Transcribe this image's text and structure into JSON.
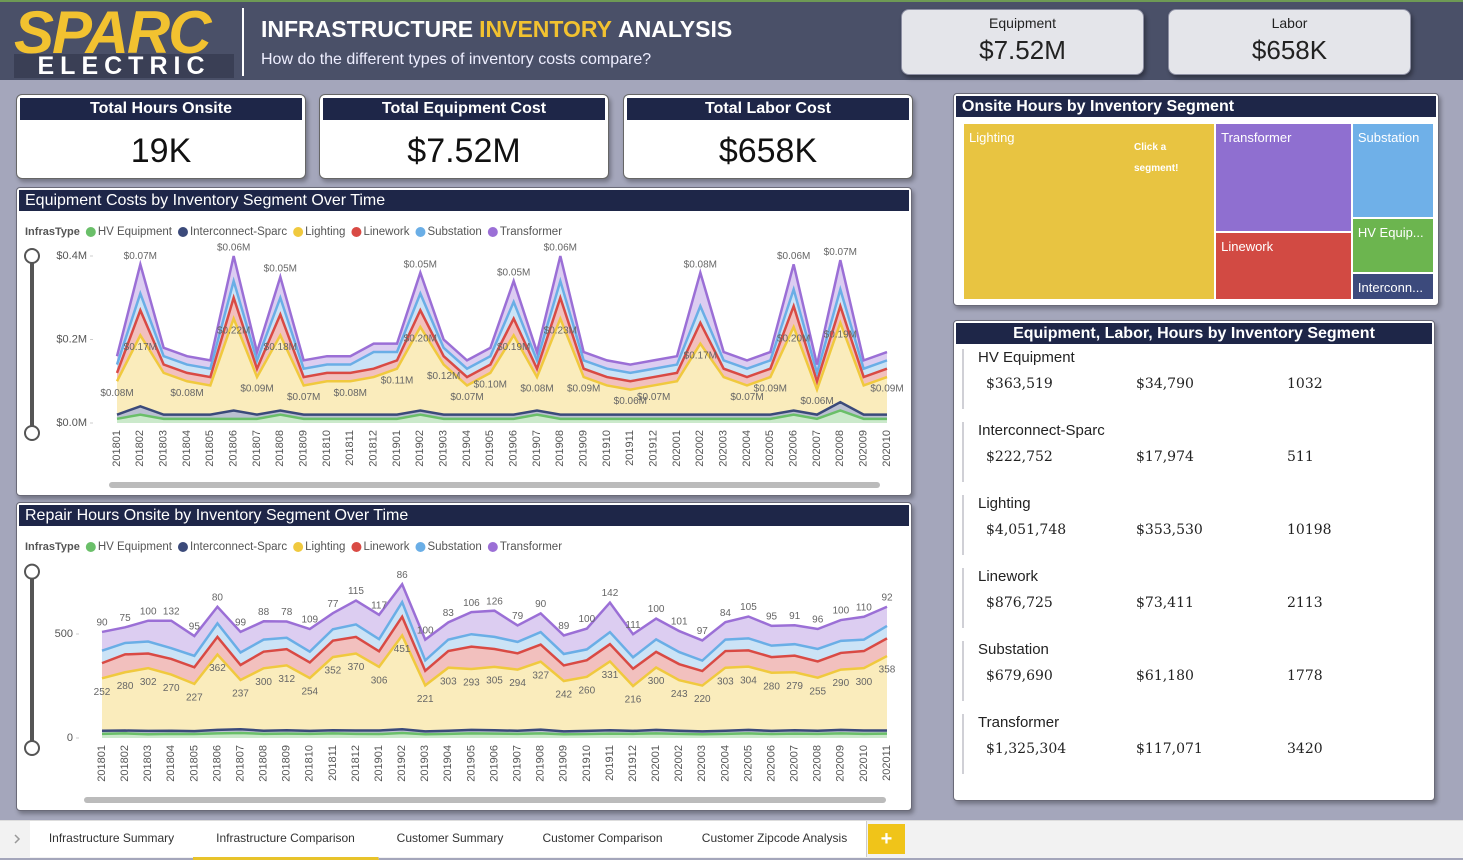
{
  "header": {
    "logo": {
      "top": "SPARC",
      "bottom": "ELECTRIC"
    },
    "title": [
      "INFRASTRUCTURE",
      "INVENTORY",
      "ANALYSIS"
    ],
    "subtitle": "How do the different types of inventory costs compare?"
  },
  "top_cards": [
    {
      "label": "Equipment",
      "value": "$7.52M"
    },
    {
      "label": "Labor",
      "value": "$658K"
    }
  ],
  "kpi_cards": [
    {
      "title": "Total Hours Onsite",
      "value": "19K"
    },
    {
      "title": "Total Equipment Cost",
      "value": "$7.52M"
    },
    {
      "title": "Total Labor Cost",
      "value": "$658K"
    }
  ],
  "chart_data": [
    {
      "type": "area",
      "stacked": true,
      "title": "Equipment Costs by Inventory Segment Over Time",
      "legend_title": "InfrasType",
      "categories": [
        "201801",
        "201802",
        "201803",
        "201804",
        "201805",
        "201806",
        "201807",
        "201808",
        "201809",
        "201810",
        "201811",
        "201812",
        "201901",
        "201902",
        "201903",
        "201904",
        "201905",
        "201906",
        "201907",
        "201908",
        "201909",
        "201910",
        "201911",
        "201912",
        "202001",
        "202002",
        "202003",
        "202004",
        "202005",
        "202006",
        "202007",
        "202008",
        "202009",
        "202010"
      ],
      "series": [
        {
          "name": "HV Equipment",
          "color": "#6abf69",
          "values": [
            0.01,
            0.02,
            0.01,
            0.01,
            0.01,
            0.01,
            0.01,
            0.02,
            0.01,
            0.01,
            0.01,
            0.01,
            0.01,
            0.02,
            0.01,
            0.01,
            0.01,
            0.01,
            0.02,
            0.01,
            0.01,
            0.01,
            0.01,
            0.01,
            0.01,
            0.01,
            0.01,
            0.01,
            0.01,
            0.02,
            0.01,
            0.03,
            0.01,
            0.01
          ]
        },
        {
          "name": "Interconnect-Sparc",
          "color": "#3b4a7a",
          "values": [
            0.01,
            0.02,
            0.01,
            0.01,
            0.01,
            0.02,
            0.01,
            0.01,
            0.01,
            0.01,
            0.01,
            0.01,
            0.01,
            0.01,
            0.01,
            0.01,
            0.01,
            0.01,
            0.01,
            0.01,
            0.01,
            0.01,
            0.01,
            0.01,
            0.01,
            0.01,
            0.01,
            0.01,
            0.01,
            0.01,
            0.01,
            0.02,
            0.01,
            0.01
          ]
        },
        {
          "name": "Lighting",
          "color": "#f0c93e",
          "values": [
            0.08,
            0.17,
            0.1,
            0.08,
            0.07,
            0.22,
            0.09,
            0.18,
            0.07,
            0.08,
            0.08,
            0.09,
            0.11,
            0.2,
            0.12,
            0.07,
            0.1,
            0.19,
            0.08,
            0.23,
            0.09,
            0.07,
            0.06,
            0.07,
            0.08,
            0.17,
            0.09,
            0.07,
            0.09,
            0.2,
            0.06,
            0.19,
            0.07,
            0.09
          ],
          "value_labels": [
            "$0.08M",
            "$0.17M",
            null,
            "$0.08M",
            null,
            "$0.22M",
            "$0.09M",
            "$0.18M",
            "$0.07M",
            null,
            "$0.08M",
            null,
            "$0.11M",
            "$0.20M",
            "$0.12M",
            "$0.07M",
            "$0.10M",
            "$0.19M",
            "$0.08M",
            "$0.23M",
            "$0.09M",
            null,
            "$0.06M",
            "$0.07M",
            null,
            "$0.17M",
            null,
            "$0.07M",
            "$0.09M",
            "$0.20M",
            "$0.06M",
            "$0.19M",
            null,
            "$0.09M"
          ]
        },
        {
          "name": "Linework",
          "color": "#d94a44",
          "values": [
            0.02,
            0.06,
            0.02,
            0.02,
            0.02,
            0.05,
            0.02,
            0.05,
            0.02,
            0.02,
            0.02,
            0.02,
            0.02,
            0.04,
            0.02,
            0.02,
            0.02,
            0.04,
            0.02,
            0.05,
            0.02,
            0.02,
            0.02,
            0.02,
            0.02,
            0.05,
            0.02,
            0.02,
            0.02,
            0.05,
            0.02,
            0.04,
            0.02,
            0.02
          ]
        },
        {
          "name": "Substation",
          "color": "#6aaee6",
          "values": [
            0.02,
            0.04,
            0.02,
            0.02,
            0.02,
            0.04,
            0.02,
            0.04,
            0.02,
            0.02,
            0.02,
            0.04,
            0.02,
            0.04,
            0.02,
            0.02,
            0.02,
            0.04,
            0.02,
            0.04,
            0.02,
            0.02,
            0.02,
            0.02,
            0.02,
            0.04,
            0.02,
            0.02,
            0.02,
            0.04,
            0.02,
            0.04,
            0.02,
            0.02
          ]
        },
        {
          "name": "Transformer",
          "color": "#9b6fd6",
          "values": [
            0.02,
            0.07,
            0.02,
            0.02,
            0.02,
            0.06,
            0.02,
            0.05,
            0.02,
            0.02,
            0.02,
            0.02,
            0.02,
            0.05,
            0.02,
            0.02,
            0.02,
            0.05,
            0.02,
            0.06,
            0.02,
            0.02,
            0.02,
            0.02,
            0.02,
            0.08,
            0.02,
            0.02,
            0.02,
            0.06,
            0.02,
            0.07,
            0.02,
            0.02
          ],
          "value_labels": [
            null,
            "$0.07M",
            null,
            null,
            null,
            "$0.06M",
            null,
            "$0.05M",
            null,
            null,
            null,
            null,
            null,
            "$0.05M",
            null,
            null,
            null,
            "$0.05M",
            null,
            "$0.06M",
            null,
            null,
            null,
            null,
            null,
            "$0.08M",
            null,
            null,
            null,
            "$0.06M",
            null,
            "$0.07M",
            null,
            null
          ]
        }
      ],
      "ylim": [
        0,
        0.4
      ],
      "yticks": [
        {
          "value": 0,
          "label": "$0.0M"
        },
        {
          "value": 0.2,
          "label": "$0.2M"
        },
        {
          "value": 0.4,
          "label": "$0.4M"
        }
      ]
    },
    {
      "type": "area",
      "stacked": true,
      "title": "Repair Hours Onsite by Inventory Segment Over Time",
      "legend_title": "InfrasType",
      "categories": [
        "201801",
        "201802",
        "201803",
        "201804",
        "201805",
        "201806",
        "201807",
        "201808",
        "201809",
        "201810",
        "201811",
        "201812",
        "201901",
        "201902",
        "201903",
        "201904",
        "201905",
        "201906",
        "201907",
        "201908",
        "201909",
        "201910",
        "201911",
        "201912",
        "202001",
        "202002",
        "202003",
        "202004",
        "202005",
        "202006",
        "202007",
        "202008",
        "202009",
        "202010",
        "202011"
      ],
      "series": [
        {
          "name": "HV Equipment",
          "color": "#6abf69",
          "values": [
            20,
            22,
            18,
            20,
            19,
            22,
            24,
            20,
            21,
            20,
            22,
            20,
            19,
            24,
            18,
            20,
            22,
            21,
            20,
            22,
            18,
            19,
            21,
            20,
            22,
            20,
            18,
            20,
            22,
            19,
            21,
            20,
            22,
            20,
            21
          ]
        },
        {
          "name": "Interconnect-Sparc",
          "color": "#3b4a7a",
          "values": [
            15,
            14,
            16,
            15,
            14,
            17,
            18,
            15,
            16,
            14,
            15,
            16,
            17,
            18,
            14,
            15,
            17,
            16,
            15,
            18,
            14,
            15,
            16,
            14,
            17,
            15,
            14,
            15,
            17,
            15,
            16,
            15,
            17,
            16,
            15
          ]
        },
        {
          "name": "Lighting",
          "color": "#f0c93e",
          "data_labels": true,
          "values": [
            252,
            280,
            302,
            270,
            227,
            362,
            237,
            300,
            312,
            254,
            352,
            370,
            306,
            451,
            221,
            303,
            293,
            305,
            294,
            327,
            242,
            260,
            331,
            216,
            300,
            243,
            220,
            303,
            304,
            280,
            279,
            255,
            290,
            300,
            358
          ]
        },
        {
          "name": "Linework",
          "color": "#d94a44",
          "values": [
            73,
            86,
            70,
            75,
            80,
            85,
            72,
            80,
            78,
            75,
            79,
            80,
            75,
            90,
            70,
            80,
            107,
            86,
            78,
            82,
            75,
            80,
            83,
            83,
            75,
            77,
            70,
            80,
            78,
            75,
            80,
            78,
            80,
            82,
            85
          ]
        },
        {
          "name": "Substation",
          "color": "#6aaee6",
          "values": [
            60,
            55,
            58,
            52,
            55,
            65,
            60,
            58,
            55,
            52,
            55,
            60,
            58,
            70,
            50,
            55,
            60,
            58,
            55,
            60,
            55,
            52,
            58,
            55,
            60,
            58,
            50,
            55,
            58,
            55,
            55,
            60,
            58,
            55,
            60
          ]
        },
        {
          "name": "Transformer",
          "color": "#9b6fd6",
          "data_labels": true,
          "values": [
            90,
            75,
            100,
            132,
            95,
            80,
            99,
            88,
            78,
            109,
            77,
            115,
            117,
            86,
            100,
            83,
            106,
            126,
            79,
            90,
            89,
            100,
            142,
            111,
            100,
            101,
            97,
            84,
            105,
            95,
            91,
            96,
            100,
            110,
            92
          ]
        }
      ],
      "ylim": [
        0,
        800
      ],
      "yticks": [
        0,
        500
      ]
    }
  ],
  "treemap": {
    "title": "Onsite Hours by Inventory Segment",
    "tiles": [
      "HV Equip...",
      "Interconn...",
      "Lighting",
      "Linework",
      "Substation",
      "Transformer"
    ],
    "colors": [
      "#6cb54f",
      "#3c4a7c",
      "#e8c441",
      "#d24a43",
      "#6fb0e8",
      "#8f6fd0"
    ],
    "hint": "Click a segment!"
  },
  "table": {
    "title": "Equipment, Labor, Hours by Inventory Segment",
    "rows": [
      [
        "HV Equipment",
        "$363,519",
        "$34,790",
        1032
      ],
      [
        "Interconnect-Sparc",
        "$222,752",
        "$17,974",
        511
      ],
      [
        "Lighting",
        "$4,051,748",
        "$353,530",
        10198
      ],
      [
        "Linework",
        "$876,725",
        "$73,411",
        2113
      ],
      [
        "Substation",
        "$679,690",
        "$61,180",
        1778
      ],
      [
        "Transformer",
        "$1,325,304",
        "$117,071",
        3420
      ]
    ]
  },
  "tabs": {
    "items": [
      "Infrastructure Summary",
      "Infrastructure Comparison",
      "Customer Summary",
      "Customer Comparison",
      "Customer Zipcode Analysis"
    ],
    "active": 1,
    "add": "+"
  }
}
